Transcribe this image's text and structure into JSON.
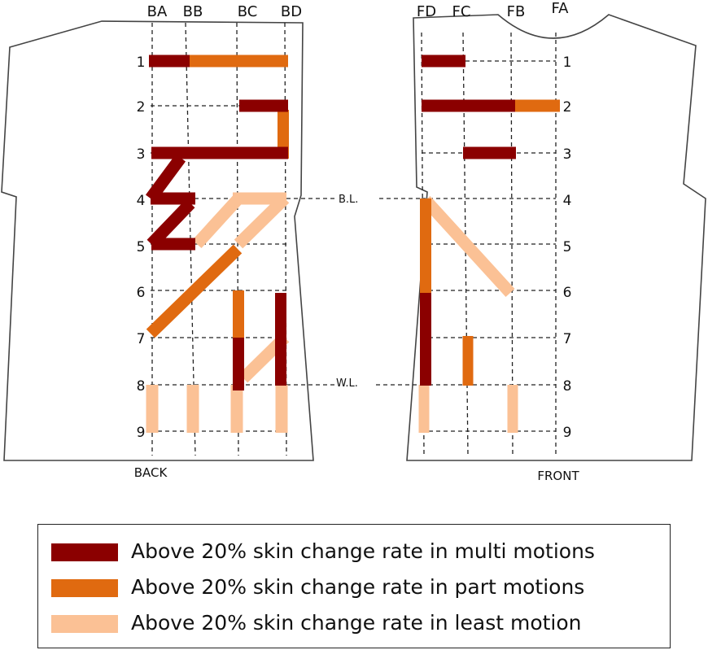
{
  "colors": {
    "multi": "#8B0000",
    "part": "#E06A10",
    "least": "#FBC195",
    "outline": "#444444",
    "grid": "#222222"
  },
  "back": {
    "view_label": "BACK",
    "columns": [
      "BA",
      "BB",
      "BC",
      "BD"
    ],
    "rows": [
      "1",
      "2",
      "3",
      "4",
      "5",
      "6",
      "7",
      "8",
      "9"
    ]
  },
  "front": {
    "view_label": "FRONT",
    "columns": [
      "FD",
      "FC",
      "FB",
      "FA"
    ],
    "rows": [
      "1",
      "2",
      "3",
      "4",
      "5",
      "6",
      "7",
      "8",
      "9"
    ]
  },
  "lines": {
    "bust": "B.L.",
    "waist": "W.L."
  },
  "legend": [
    {
      "key": "multi",
      "label": "Above 20% skin change rate in multi motions"
    },
    {
      "key": "part",
      "label": "Above 20% skin change rate in part motions"
    },
    {
      "key": "least",
      "label": "Above 20% skin change rate in least motion"
    }
  ]
}
